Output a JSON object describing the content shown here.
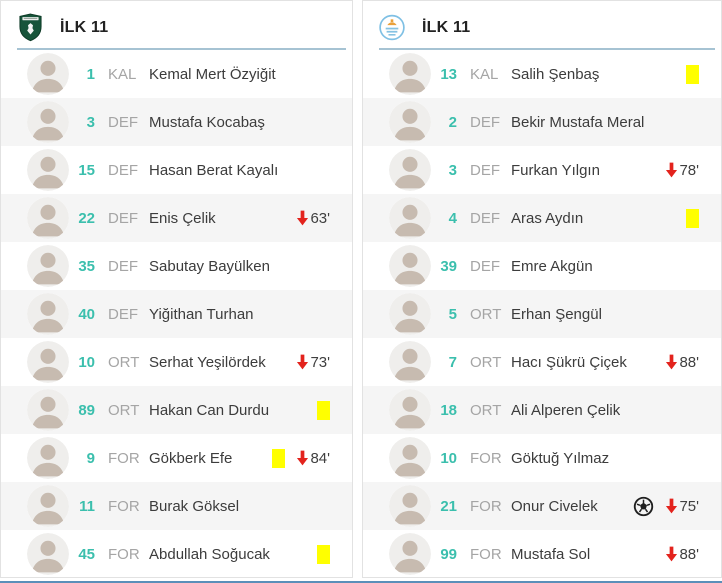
{
  "colors": {
    "number": "#3bbfad",
    "position_label": "#a5a5a5",
    "player_name": "#3c3c3c",
    "header_divider": "#a6c3d3",
    "yellow_card": "#ffff00",
    "substitution_arrow": "#e3231d",
    "alt_row_background": "#f5f5f5",
    "panel_border": "#e2e2e2",
    "bottom_line": "#5b8fb9",
    "home_crest_green": "#17543a",
    "away_crest_blue": "#7fc0e4",
    "away_crest_orange": "#eaa13c"
  },
  "panels": [
    {
      "title": "İLK 11",
      "crest": "green-shield-crest",
      "players": [
        {
          "number": "1",
          "position": "KAL",
          "name": "Kemal Mert Özyiğit",
          "yellow_card": false,
          "goal": false,
          "sub_out_minute": null
        },
        {
          "number": "3",
          "position": "DEF",
          "name": "Mustafa Kocabaş",
          "yellow_card": false,
          "goal": false,
          "sub_out_minute": null
        },
        {
          "number": "15",
          "position": "DEF",
          "name": "Hasan Berat Kayalı",
          "yellow_card": false,
          "goal": false,
          "sub_out_minute": null
        },
        {
          "number": "22",
          "position": "DEF",
          "name": "Enis Çelik",
          "yellow_card": false,
          "goal": false,
          "sub_out_minute": "63'"
        },
        {
          "number": "35",
          "position": "DEF",
          "name": "Sabutay Bayülken",
          "yellow_card": false,
          "goal": false,
          "sub_out_minute": null
        },
        {
          "number": "40",
          "position": "DEF",
          "name": "Yiğithan Turhan",
          "yellow_card": false,
          "goal": false,
          "sub_out_minute": null
        },
        {
          "number": "10",
          "position": "ORT",
          "name": "Serhat Yeşilördek",
          "yellow_card": false,
          "goal": false,
          "sub_out_minute": "73'"
        },
        {
          "number": "89",
          "position": "ORT",
          "name": "Hakan Can Durdu",
          "yellow_card": true,
          "goal": false,
          "sub_out_minute": null
        },
        {
          "number": "9",
          "position": "FOR",
          "name": "Gökberk Efe",
          "yellow_card": true,
          "goal": false,
          "sub_out_minute": "84'"
        },
        {
          "number": "11",
          "position": "FOR",
          "name": "Burak Göksel",
          "yellow_card": false,
          "goal": false,
          "sub_out_minute": null
        },
        {
          "number": "45",
          "position": "FOR",
          "name": "Abdullah Soğucak",
          "yellow_card": true,
          "goal": false,
          "sub_out_minute": null
        }
      ]
    },
    {
      "title": "İLK 11",
      "crest": "light-blue-circle-crest",
      "players": [
        {
          "number": "13",
          "position": "KAL",
          "name": "Salih Şenbaş",
          "yellow_card": true,
          "goal": false,
          "sub_out_minute": null
        },
        {
          "number": "2",
          "position": "DEF",
          "name": "Bekir Mustafa Meral",
          "yellow_card": false,
          "goal": false,
          "sub_out_minute": null
        },
        {
          "number": "3",
          "position": "DEF",
          "name": "Furkan Yılgın",
          "yellow_card": false,
          "goal": false,
          "sub_out_minute": "78'"
        },
        {
          "number": "4",
          "position": "DEF",
          "name": "Aras Aydın",
          "yellow_card": true,
          "goal": false,
          "sub_out_minute": null
        },
        {
          "number": "39",
          "position": "DEF",
          "name": "Emre Akgün",
          "yellow_card": false,
          "goal": false,
          "sub_out_minute": null
        },
        {
          "number": "5",
          "position": "ORT",
          "name": "Erhan Şengül",
          "yellow_card": false,
          "goal": false,
          "sub_out_minute": null
        },
        {
          "number": "7",
          "position": "ORT",
          "name": "Hacı Şükrü Çiçek",
          "yellow_card": false,
          "goal": false,
          "sub_out_minute": "88'"
        },
        {
          "number": "18",
          "position": "ORT",
          "name": "Ali Alperen Çelik",
          "yellow_card": false,
          "goal": false,
          "sub_out_minute": null
        },
        {
          "number": "10",
          "position": "FOR",
          "name": "Göktuğ Yılmaz",
          "yellow_card": false,
          "goal": false,
          "sub_out_minute": null
        },
        {
          "number": "21",
          "position": "FOR",
          "name": "Onur Civelek",
          "yellow_card": false,
          "goal": true,
          "sub_out_minute": "75'"
        },
        {
          "number": "99",
          "position": "FOR",
          "name": "Mustafa Sol",
          "yellow_card": false,
          "goal": false,
          "sub_out_minute": "88'"
        }
      ]
    }
  ]
}
